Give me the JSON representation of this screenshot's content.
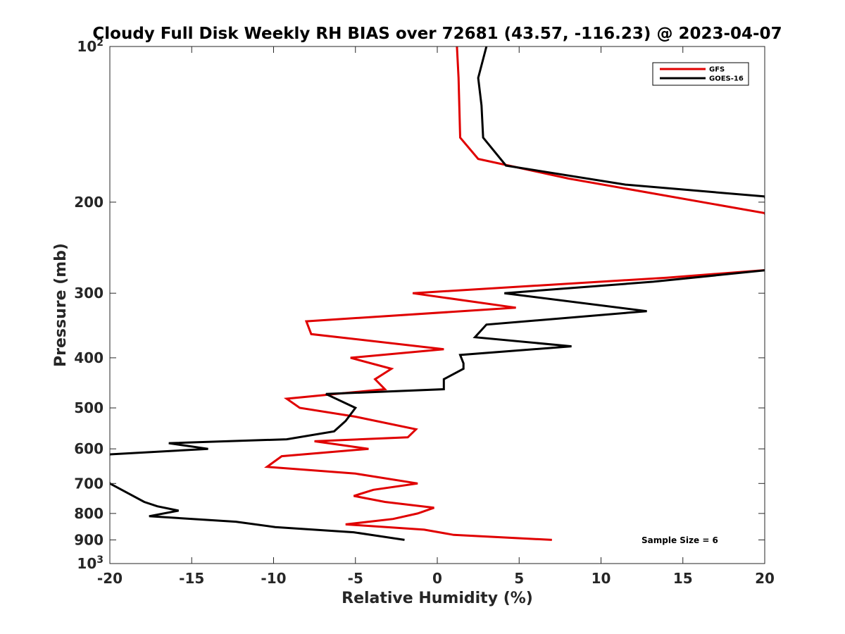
{
  "chart_data": {
    "type": "line",
    "title": "Cloudy Full Disk Weekly RH BIAS over 72681 (43.57, -116.23) @ 2023-04-07",
    "xlabel": "Relative Humidity (%)",
    "ylabel": "Pressure (mb)",
    "xlim": [
      -20,
      20
    ],
    "ylim": [
      100,
      1000
    ],
    "yscale": "log",
    "yreversed": true,
    "grid": false,
    "legend_position": "top-right",
    "x_ticks": [
      -20,
      -15,
      -10,
      -5,
      0,
      5,
      10,
      15,
      20
    ],
    "x_tick_labels": [
      "-20",
      "-15",
      "-10",
      "-5",
      "0",
      "5",
      "10",
      "15",
      "20"
    ],
    "y_ticks": [
      100,
      200,
      300,
      400,
      500,
      600,
      700,
      800,
      900,
      1000
    ],
    "y_tick_labels": [
      {
        "base": "10",
        "exp": "2"
      },
      {
        "base": "200",
        "exp": ""
      },
      {
        "base": "300",
        "exp": ""
      },
      {
        "base": "400",
        "exp": ""
      },
      {
        "base": "500",
        "exp": ""
      },
      {
        "base": "600",
        "exp": ""
      },
      {
        "base": "700",
        "exp": ""
      },
      {
        "base": "800",
        "exp": ""
      },
      {
        "base": "900",
        "exp": ""
      },
      {
        "base": "10",
        "exp": "3"
      }
    ],
    "annotation": "Sample Size = 6",
    "series": [
      {
        "name": "GFS",
        "color": "#e00000",
        "x": [
          1.2,
          1.3,
          1.4,
          2.5,
          8.0,
          20.0,
          21.0,
          20.5,
          14.0,
          -1.5,
          4.8,
          -8.0,
          -7.7,
          0.4,
          -5.3,
          -2.8,
          -3.8,
          -3.2,
          -9.2,
          -8.4,
          -5.0,
          -1.3,
          -1.8,
          -7.5,
          -4.2,
          -9.5,
          -10.4,
          -5.0,
          -1.2,
          -3.9,
          -5.1,
          -3.2,
          -0.2,
          -1.2,
          -2.7,
          -5.6,
          -0.8,
          1.0,
          7.0
        ],
        "y": [
          100,
          115,
          150,
          165,
          180,
          210,
          250,
          270,
          280,
          300,
          320,
          340,
          360,
          385,
          400,
          420,
          440,
          460,
          480,
          500,
          520,
          550,
          570,
          580,
          600,
          620,
          650,
          670,
          700,
          720,
          740,
          760,
          780,
          800,
          820,
          840,
          860,
          880,
          900
        ]
      },
      {
        "name": "GOES-16",
        "color": "#000000",
        "x": [
          3.0,
          2.5,
          2.7,
          2.8,
          4.2,
          11.5,
          20.0,
          21.0,
          20.5,
          13.2,
          4.1,
          12.8,
          3.0,
          2.3,
          8.2,
          1.4,
          1.6,
          1.6,
          0.4,
          0.4,
          -6.8,
          -5.0,
          -5.6,
          -6.3,
          -9.2,
          -16.4,
          -14.0,
          -20.0,
          -20.5,
          -20.0,
          -17.9,
          -17.1,
          -15.8,
          -17.6,
          -12.3,
          -9.9,
          -5.1,
          -2.0
        ],
        "y": [
          100,
          115,
          130,
          150,
          170,
          185,
          195,
          250,
          270,
          285,
          300,
          325,
          345,
          365,
          380,
          395,
          410,
          420,
          440,
          460,
          470,
          500,
          530,
          555,
          575,
          585,
          600,
          615,
          650,
          700,
          760,
          775,
          790,
          810,
          830,
          850,
          870,
          900
        ]
      }
    ]
  }
}
